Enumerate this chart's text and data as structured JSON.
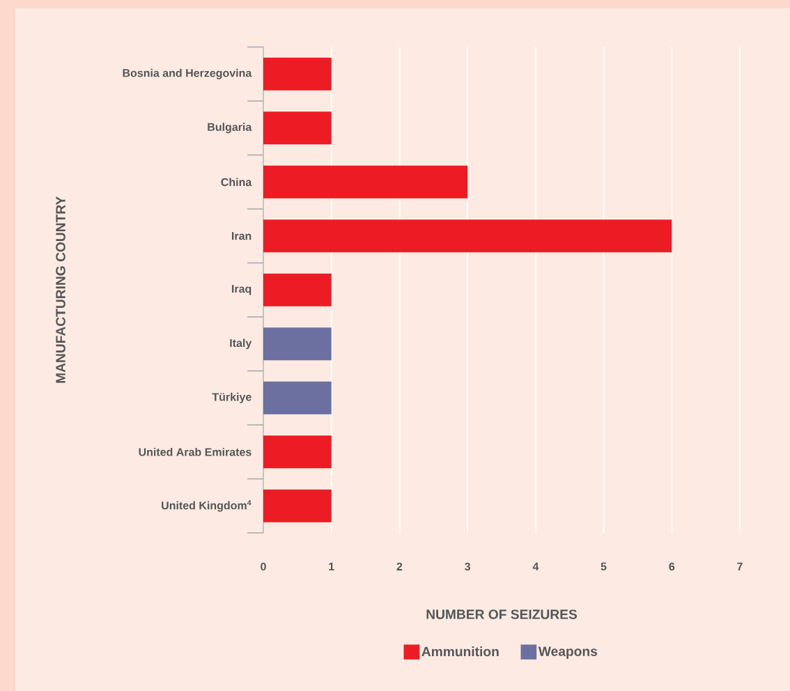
{
  "chart_data": {
    "type": "bar",
    "orientation": "horizontal",
    "xlabel": "NUMBER OF SEIZURES",
    "ylabel": "MANUFACTURING COUNTRY",
    "categories": [
      "Bosnia and Herzegovina",
      "Bulgaria",
      "China",
      "Iran",
      "Iraq",
      "Italy",
      "Türkiye",
      "United Arab Emirates",
      "United Kingdom$^{4}$"
    ],
    "series": [
      {
        "name": "Ammunition",
        "color": "#ed1c24",
        "values": [
          1,
          1,
          3,
          6,
          1,
          null,
          null,
          1,
          1
        ]
      },
      {
        "name": "Weapons",
        "color": "#6b70a0",
        "values": [
          null,
          null,
          null,
          null,
          null,
          1,
          1,
          null,
          null
        ]
      }
    ],
    "xlim": [
      0,
      7
    ],
    "xticks": [
      0,
      1,
      2,
      3,
      4,
      5,
      6,
      7
    ],
    "grid": "x",
    "legend": "bottom"
  }
}
